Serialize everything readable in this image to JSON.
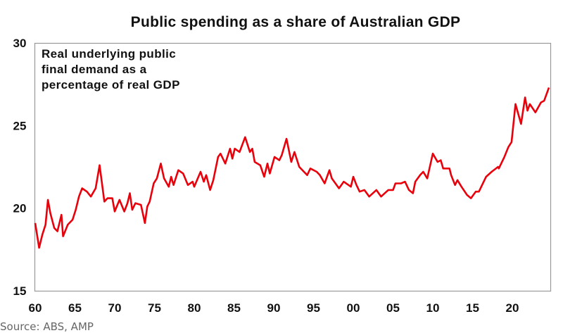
{
  "chart_data": {
    "type": "line",
    "title": "Public spending as a share of Australian GDP",
    "annotation": [
      "Real underlying public",
      "final demand as a",
      "percentage of real GDP"
    ],
    "source": "Source: ABS, AMP",
    "xlim": [
      1960,
      2024.9
    ],
    "ylim": [
      15,
      30
    ],
    "yticks": [
      15,
      20,
      25,
      30
    ],
    "xticks": [
      {
        "year": 1960,
        "label": "60"
      },
      {
        "year": 1965,
        "label": "65"
      },
      {
        "year": 1970,
        "label": "70"
      },
      {
        "year": 1975,
        "label": "75"
      },
      {
        "year": 1980,
        "label": "80"
      },
      {
        "year": 1985,
        "label": "85"
      },
      {
        "year": 1990,
        "label": "90"
      },
      {
        "year": 1995,
        "label": "95"
      },
      {
        "year": 2000,
        "label": "00"
      },
      {
        "year": 2005,
        "label": "05"
      },
      {
        "year": 2010,
        "label": "10"
      },
      {
        "year": 2015,
        "label": "15"
      },
      {
        "year": 2020,
        "label": "20"
      }
    ],
    "grid": false,
    "line_color": "#e8000b",
    "series": [
      {
        "x": [
          1960.0,
          1960.5,
          1960.9,
          1961.3,
          1961.6,
          1961.9,
          1962.4,
          1962.8,
          1963.3,
          1963.5,
          1964.1,
          1964.7,
          1965.1,
          1965.5,
          1965.9,
          1966.5,
          1967.0,
          1967.6,
          1968.1,
          1968.7,
          1969.1,
          1969.7,
          1970.0,
          1970.6,
          1971.2,
          1971.6,
          1971.9,
          1972.2,
          1972.6,
          1973.3,
          1973.8,
          1974.1,
          1974.4,
          1974.9,
          1975.3,
          1975.8,
          1976.2,
          1976.8,
          1977.1,
          1977.4,
          1978.0,
          1978.6,
          1979.2,
          1979.8,
          1980.0,
          1980.8,
          1981.2,
          1981.5,
          1982.0,
          1982.4,
          1983.0,
          1983.3,
          1983.9,
          1984.5,
          1984.8,
          1985.1,
          1985.7,
          1986.4,
          1987.0,
          1987.3,
          1987.6,
          1988.3,
          1988.8,
          1989.2,
          1989.5,
          1990.1,
          1990.7,
          1991.0,
          1991.6,
          1992.2,
          1992.6,
          1993.2,
          1993.8,
          1994.2,
          1994.6,
          1995.4,
          1995.8,
          1996.4,
          1997.0,
          1997.3,
          1998.2,
          1998.8,
          1999.7,
          2000.0,
          2000.4,
          2000.8,
          2001.4,
          2002.0,
          2002.9,
          2003.5,
          2004.4,
          2005.0,
          2005.3,
          2006.0,
          2006.5,
          2007.0,
          2007.5,
          2007.8,
          2008.4,
          2008.8,
          2009.3,
          2010.0,
          2010.6,
          2011.0,
          2011.3,
          2012.1,
          2012.3,
          2012.8,
          2013.1,
          2013.6,
          2014.3,
          2014.8,
          2015.4,
          2015.8,
          2016.7,
          2017.4,
          2018.2,
          2018.3,
          2019.0,
          2019.5,
          2019.9,
          2020.4,
          2021.1,
          2021.6,
          2021.9,
          2022.2,
          2022.9,
          2023.6,
          2024.0,
          2024.6
        ],
        "y": [
          19.1,
          17.6,
          18.4,
          19.0,
          20.5,
          19.7,
          18.8,
          18.6,
          19.6,
          18.3,
          19.0,
          19.3,
          19.9,
          20.7,
          21.2,
          21.0,
          20.7,
          21.2,
          22.6,
          20.4,
          20.6,
          20.6,
          19.8,
          20.5,
          19.8,
          20.3,
          20.9,
          19.9,
          20.3,
          20.2,
          19.1,
          20.1,
          20.4,
          21.5,
          21.8,
          22.7,
          21.8,
          21.3,
          21.9,
          21.4,
          22.3,
          22.1,
          21.4,
          21.6,
          21.3,
          22.2,
          21.6,
          22.0,
          21.1,
          21.7,
          23.1,
          23.3,
          22.7,
          23.6,
          23.0,
          23.6,
          23.4,
          24.3,
          23.4,
          23.6,
          22.8,
          22.6,
          21.9,
          22.7,
          22.1,
          23.1,
          22.9,
          23.2,
          24.2,
          22.8,
          23.4,
          22.5,
          22.2,
          22.0,
          22.4,
          22.2,
          22.0,
          21.5,
          22.3,
          21.8,
          21.2,
          21.6,
          21.3,
          21.9,
          21.4,
          21.0,
          21.1,
          20.7,
          21.1,
          20.7,
          21.1,
          21.1,
          21.5,
          21.5,
          21.6,
          21.1,
          20.9,
          21.6,
          22.0,
          22.2,
          21.8,
          23.3,
          22.8,
          22.9,
          22.4,
          22.4,
          22.0,
          21.4,
          21.7,
          21.3,
          20.8,
          20.6,
          21.0,
          21.0,
          21.9,
          22.2,
          22.5,
          22.4,
          23.1,
          23.7,
          24.0,
          26.3,
          25.1,
          26.7,
          25.9,
          26.3,
          25.8,
          26.4,
          26.5,
          27.3
        ]
      }
    ]
  }
}
